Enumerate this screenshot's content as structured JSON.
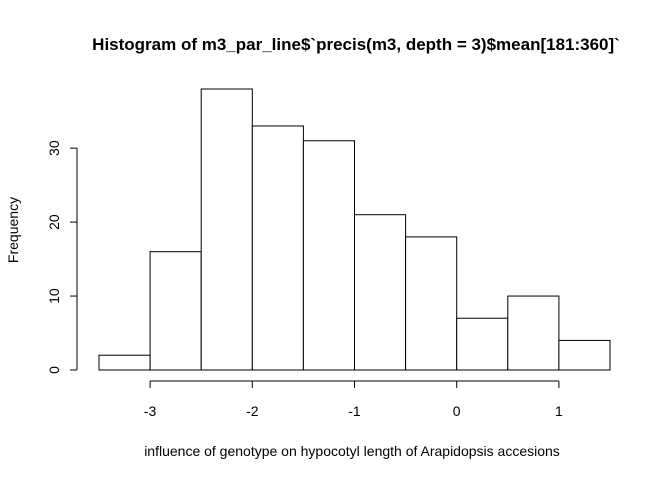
{
  "chart_data": {
    "type": "bar",
    "title": "Histogram of m3_par_line$`precis(m3, depth = 3)$mean[181:360]`",
    "xlabel": "influence of genotype on hypocotyl length of Arapidopsis accesions",
    "ylabel": "Frequency",
    "bins": [
      {
        "x0": -3.5,
        "x1": -3.0,
        "count": 2
      },
      {
        "x0": -3.0,
        "x1": -2.5,
        "count": 16
      },
      {
        "x0": -2.5,
        "x1": -2.0,
        "count": 38
      },
      {
        "x0": -2.0,
        "x1": -1.5,
        "count": 33
      },
      {
        "x0": -1.5,
        "x1": -1.0,
        "count": 31
      },
      {
        "x0": -1.0,
        "x1": -0.5,
        "count": 21
      },
      {
        "x0": -0.5,
        "x1": 0.0,
        "count": 18
      },
      {
        "x0": 0.0,
        "x1": 0.5,
        "count": 7
      },
      {
        "x0": 0.5,
        "x1": 1.0,
        "count": 10
      },
      {
        "x0": 1.0,
        "x1": 1.5,
        "count": 4
      }
    ],
    "xticks": [
      -3,
      -2,
      -1,
      0,
      1
    ],
    "xtick_labels": [
      "-3",
      "-2",
      "-1",
      "0",
      "1"
    ],
    "yticks": [
      0,
      10,
      20,
      30
    ],
    "ytick_labels": [
      "0",
      "10",
      "20",
      "30"
    ],
    "xlim": [
      -3.5,
      1.5
    ],
    "ylim": [
      0,
      38
    ],
    "grid": false,
    "legend": "none"
  }
}
